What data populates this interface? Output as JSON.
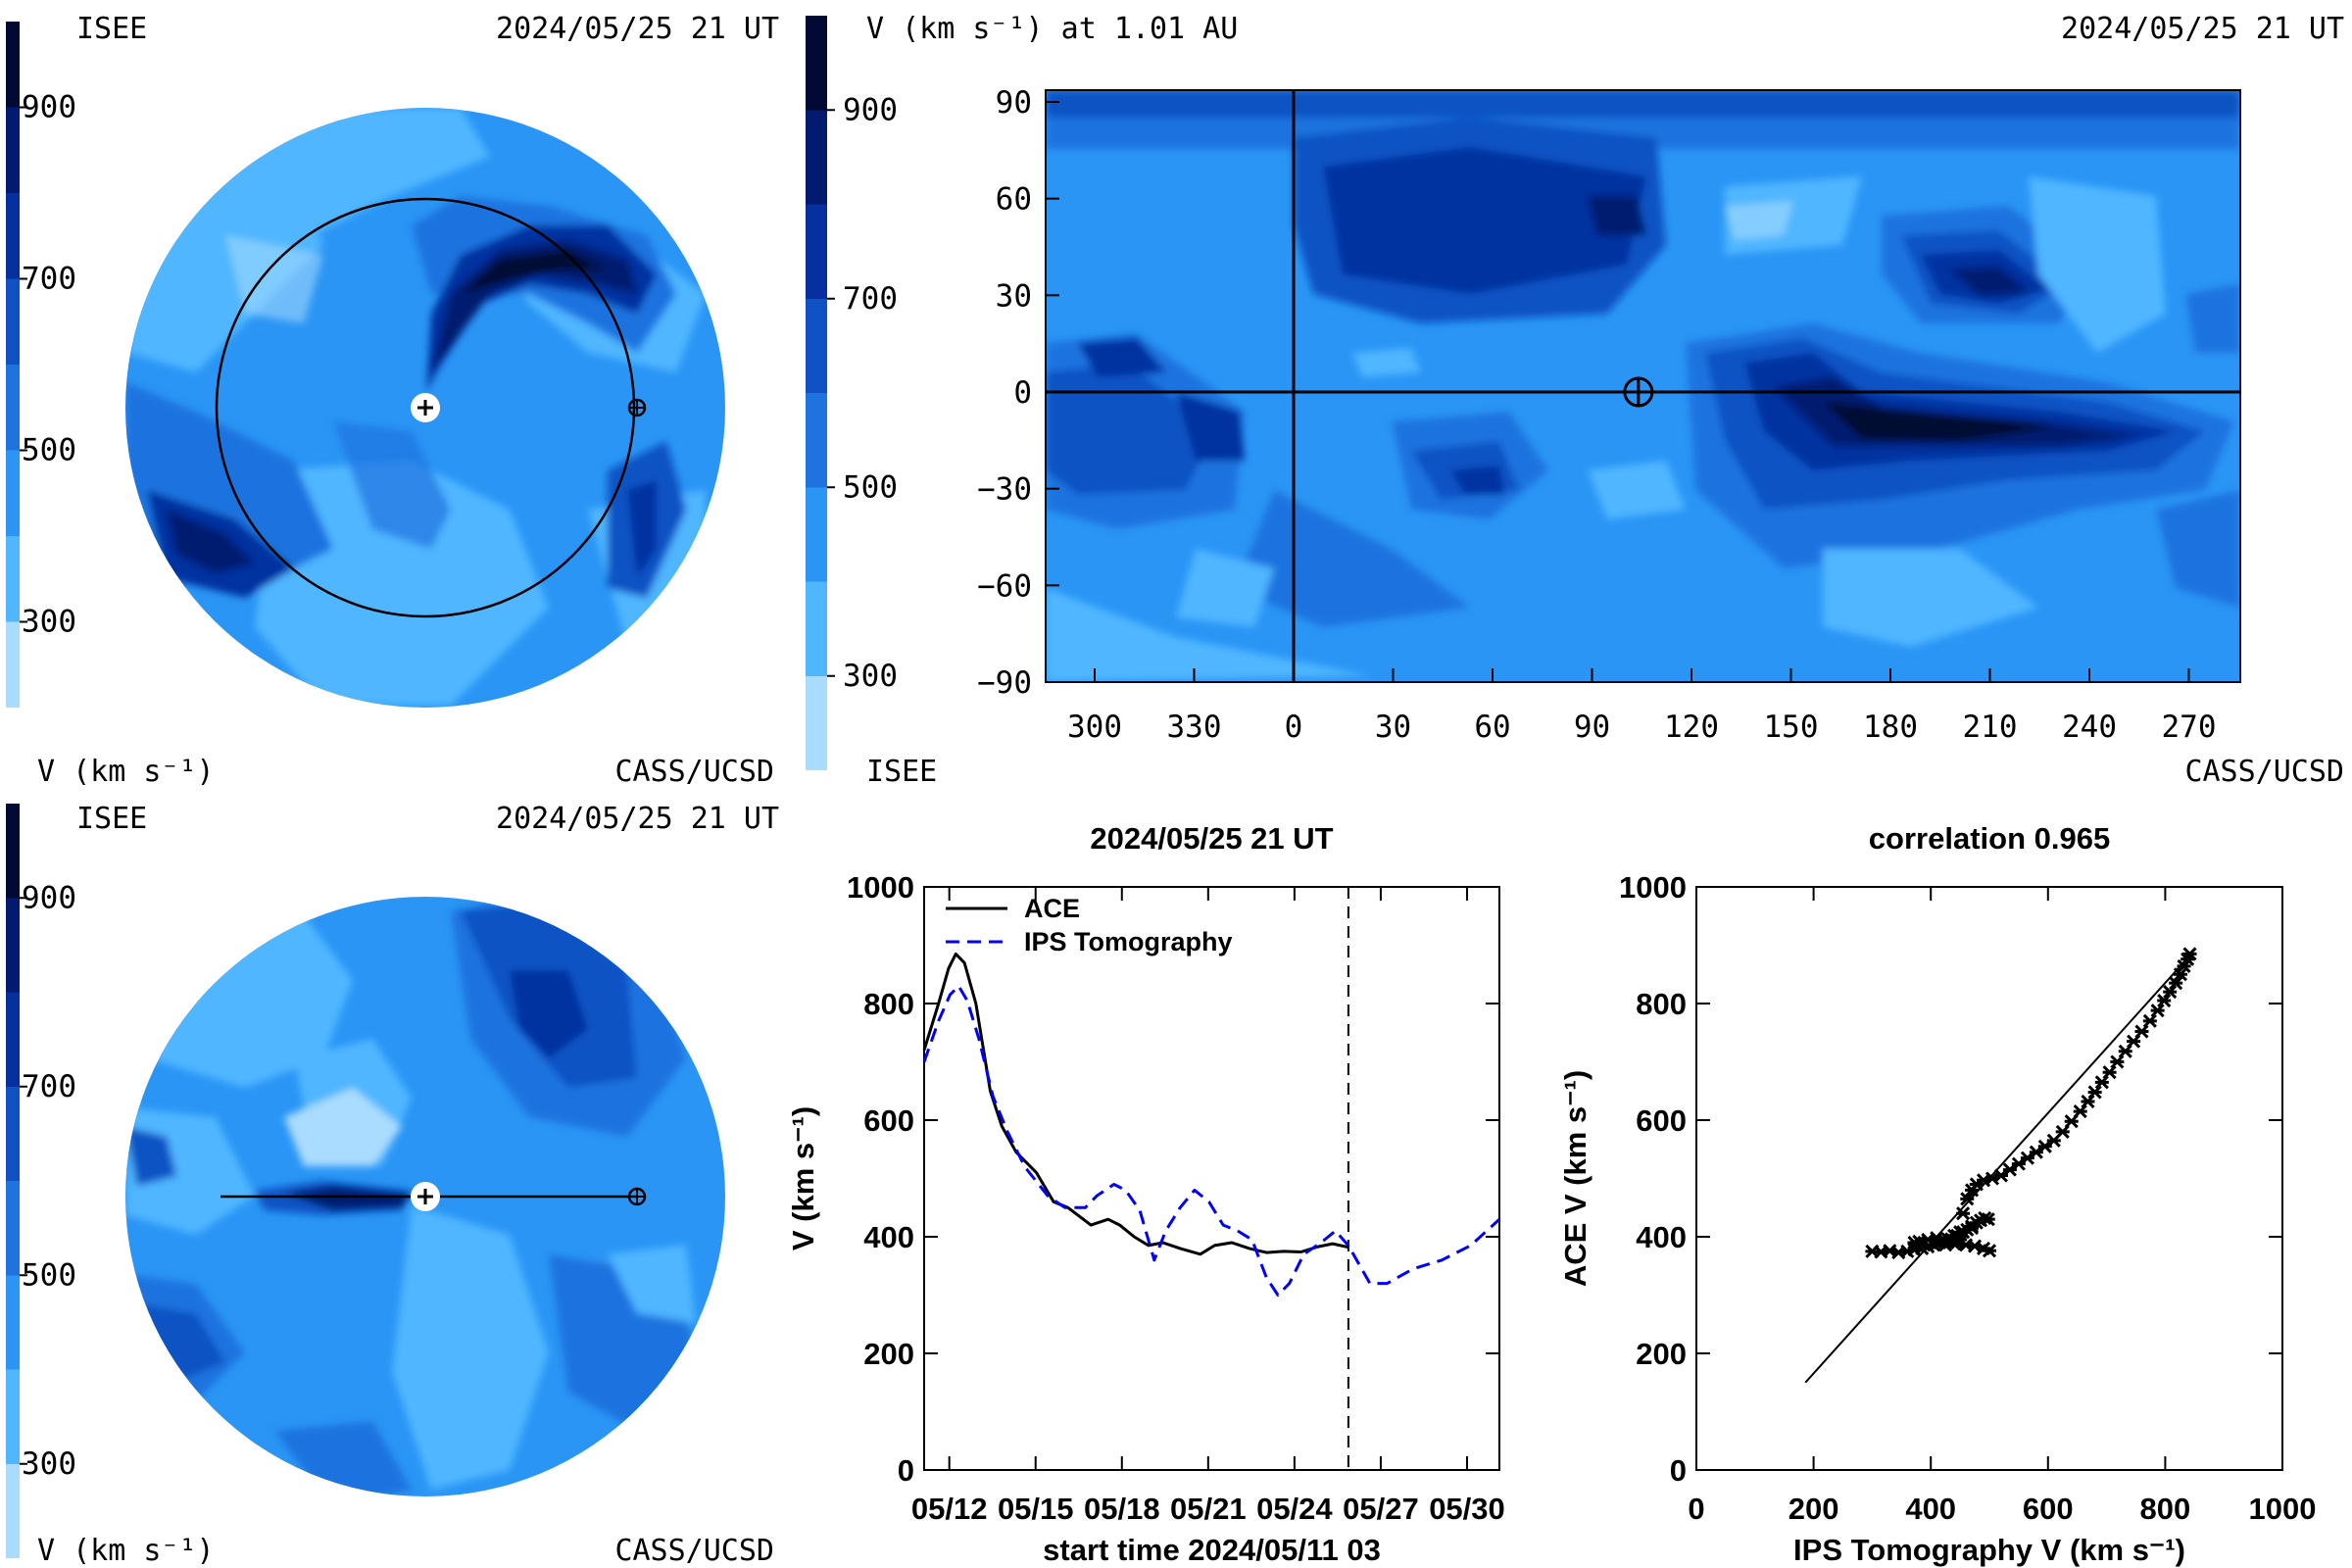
{
  "colorscale": {
    "unit_label": "V (km s⁻¹)",
    "ticks": [
      "900",
      "700",
      "500",
      "300"
    ],
    "tick_values": [
      900,
      700,
      500,
      300
    ],
    "range": [
      200,
      1000
    ],
    "colors": [
      "#aadcff",
      "#4fb6ff",
      "#2a95f5",
      "#1f73df",
      "#1052c4",
      "#0630a0",
      "#021a70",
      "#020a33"
    ]
  },
  "panel_ecliptic": {
    "org_left": "ISEE",
    "timestamp": "2024/05/25 21 UT",
    "unit_label": "V (km s⁻¹)",
    "org_right": "CASS/UCSD"
  },
  "panel_map": {
    "title": "V (km s⁻¹) at 1.01 AU",
    "timestamp": "2024/05/25 21 UT",
    "org_left": "ISEE",
    "org_right": "CASS/UCSD",
    "y_ticks": [
      "90",
      "60",
      "30",
      "0",
      "−30",
      "−60",
      "−90"
    ],
    "y_tick_values": [
      90,
      60,
      30,
      0,
      -30,
      -60,
      -90
    ],
    "x_ticks": [
      "300",
      "330",
      "0",
      "30",
      "60",
      "90",
      "120",
      "150",
      "180",
      "210",
      "240",
      "270"
    ],
    "x_tick_values": [
      300,
      330,
      0,
      30,
      60,
      90,
      120,
      150,
      180,
      210,
      240,
      270
    ],
    "earth_longitude": 104,
    "earth_latitude": 0
  },
  "panel_meridional": {
    "org_left": "ISEE",
    "timestamp": "2024/05/25 21 UT",
    "unit_label": "V (km s⁻¹)",
    "org_right": "CASS/UCSD"
  },
  "chart_data": [
    {
      "type": "line",
      "title": "2024/05/25 21 UT",
      "xlabel": "start time 2024/05/11 03",
      "ylabel": "V (km s⁻¹)",
      "ylim": [
        0,
        1000
      ],
      "xlim_days": [
        0,
        20
      ],
      "x_tick_labels": [
        "05/12",
        "05/15",
        "05/18",
        "05/21",
        "05/24",
        "05/27",
        "05/30"
      ],
      "x_tick_days": [
        0.875,
        3.875,
        6.875,
        9.875,
        12.875,
        15.875,
        18.875
      ],
      "y_ticks": [
        "0",
        "200",
        "400",
        "600",
        "800",
        "1000"
      ],
      "y_tick_values": [
        0,
        200,
        400,
        600,
        800,
        1000
      ],
      "now_marker_day": 14.75,
      "legend_position": "top-left",
      "series": [
        {
          "name": "ACE",
          "style": "solid",
          "color": "#000000",
          "points": [
            [
              0,
              720
            ],
            [
              0.5,
              800
            ],
            [
              0.85,
              860
            ],
            [
              1.1,
              885
            ],
            [
              1.4,
              870
            ],
            [
              1.8,
              800
            ],
            [
              2.3,
              650
            ],
            [
              2.7,
              590
            ],
            [
              3.2,
              545
            ],
            [
              3.9,
              510
            ],
            [
              4.5,
              460
            ],
            [
              5.0,
              450
            ],
            [
              5.8,
              420
            ],
            [
              6.4,
              430
            ],
            [
              6.8,
              420
            ],
            [
              7.3,
              400
            ],
            [
              7.8,
              385
            ],
            [
              8.3,
              390
            ],
            [
              8.9,
              380
            ],
            [
              9.6,
              370
            ],
            [
              10.1,
              385
            ],
            [
              10.7,
              390
            ],
            [
              11.3,
              380
            ],
            [
              11.9,
              373
            ],
            [
              12.5,
              375
            ],
            [
              13.1,
              374
            ],
            [
              13.7,
              383
            ],
            [
              14.2,
              388
            ],
            [
              14.75,
              382
            ]
          ]
        },
        {
          "name": "IPS Tomography",
          "style": "dashed",
          "color": "#0000ff",
          "points": [
            [
              0,
              700
            ],
            [
              0.5,
              770
            ],
            [
              0.9,
              815
            ],
            [
              1.2,
              830
            ],
            [
              1.5,
              805
            ],
            [
              1.9,
              740
            ],
            [
              2.4,
              640
            ],
            [
              2.9,
              580
            ],
            [
              3.5,
              520
            ],
            [
              4.3,
              470
            ],
            [
              4.9,
              450
            ],
            [
              5.6,
              450
            ],
            [
              6.0,
              470
            ],
            [
              6.6,
              490
            ],
            [
              7.0,
              480
            ],
            [
              7.5,
              445
            ],
            [
              8.0,
              360
            ],
            [
              8.4,
              410
            ],
            [
              8.9,
              450
            ],
            [
              9.4,
              480
            ],
            [
              9.9,
              460
            ],
            [
              10.4,
              420
            ],
            [
              10.9,
              410
            ],
            [
              11.4,
              395
            ],
            [
              11.9,
              330
            ],
            [
              12.3,
              300
            ],
            [
              12.7,
              320
            ],
            [
              13.2,
              370
            ],
            [
              13.8,
              390
            ],
            [
              14.3,
              410
            ],
            [
              14.75,
              385
            ],
            [
              15.5,
              320
            ],
            [
              16.1,
              320
            ],
            [
              17.0,
              345
            ],
            [
              18.0,
              360
            ],
            [
              19.0,
              385
            ],
            [
              20.0,
              430
            ]
          ]
        }
      ]
    },
    {
      "type": "scatter",
      "title": "correlation 0.965",
      "xlabel": "IPS Tomography V (km s⁻¹)",
      "ylabel": "ACE V (km s⁻¹)",
      "xlim": [
        0,
        1000
      ],
      "ylim": [
        0,
        1000
      ],
      "x_ticks": [
        "0",
        "200",
        "400",
        "600",
        "800",
        "1000"
      ],
      "x_tick_values": [
        0,
        200,
        400,
        600,
        800,
        1000
      ],
      "y_ticks": [
        "0",
        "200",
        "400",
        "600",
        "800",
        "1000"
      ],
      "y_tick_values": [
        0,
        200,
        400,
        600,
        800,
        1000
      ],
      "fit_line": [
        [
          186,
          150
        ],
        [
          840,
          880
        ]
      ],
      "points": [
        [
          300,
          375
        ],
        [
          315,
          374
        ],
        [
          330,
          376
        ],
        [
          345,
          373
        ],
        [
          360,
          375
        ],
        [
          372,
          378
        ],
        [
          385,
          380
        ],
        [
          395,
          383
        ],
        [
          405,
          386
        ],
        [
          415,
          390
        ],
        [
          425,
          392
        ],
        [
          435,
          396
        ],
        [
          445,
          402
        ],
        [
          455,
          408
        ],
        [
          462,
          412
        ],
        [
          470,
          418
        ],
        [
          478,
          424
        ],
        [
          485,
          428
        ],
        [
          492,
          432
        ],
        [
          498,
          430
        ],
        [
          470,
          415
        ],
        [
          450,
          408
        ],
        [
          440,
          402
        ],
        [
          445,
          390
        ],
        [
          460,
          386
        ],
        [
          475,
          384
        ],
        [
          490,
          380
        ],
        [
          500,
          376
        ],
        [
          450,
          395
        ],
        [
          430,
          395
        ],
        [
          410,
          398
        ],
        [
          395,
          395
        ],
        [
          380,
          392
        ],
        [
          372,
          390
        ],
        [
          410,
          388
        ],
        [
          425,
          386
        ],
        [
          440,
          388
        ],
        [
          455,
          440
        ],
        [
          462,
          465
        ],
        [
          470,
          480
        ],
        [
          478,
          490
        ],
        [
          490,
          497
        ],
        [
          505,
          500
        ],
        [
          520,
          505
        ],
        [
          535,
          515
        ],
        [
          550,
          525
        ],
        [
          565,
          535
        ],
        [
          580,
          545
        ],
        [
          595,
          555
        ],
        [
          610,
          565
        ],
        [
          625,
          580
        ],
        [
          640,
          598
        ],
        [
          655,
          615
        ],
        [
          668,
          632
        ],
        [
          680,
          648
        ],
        [
          692,
          665
        ],
        [
          705,
          682
        ],
        [
          718,
          700
        ],
        [
          732,
          718
        ],
        [
          746,
          735
        ],
        [
          760,
          752
        ],
        [
          774,
          770
        ],
        [
          787,
          788
        ],
        [
          798,
          805
        ],
        [
          808,
          820
        ],
        [
          818,
          835
        ],
        [
          826,
          850
        ],
        [
          832,
          864
        ],
        [
          838,
          876
        ],
        [
          842,
          885
        ]
      ]
    }
  ]
}
